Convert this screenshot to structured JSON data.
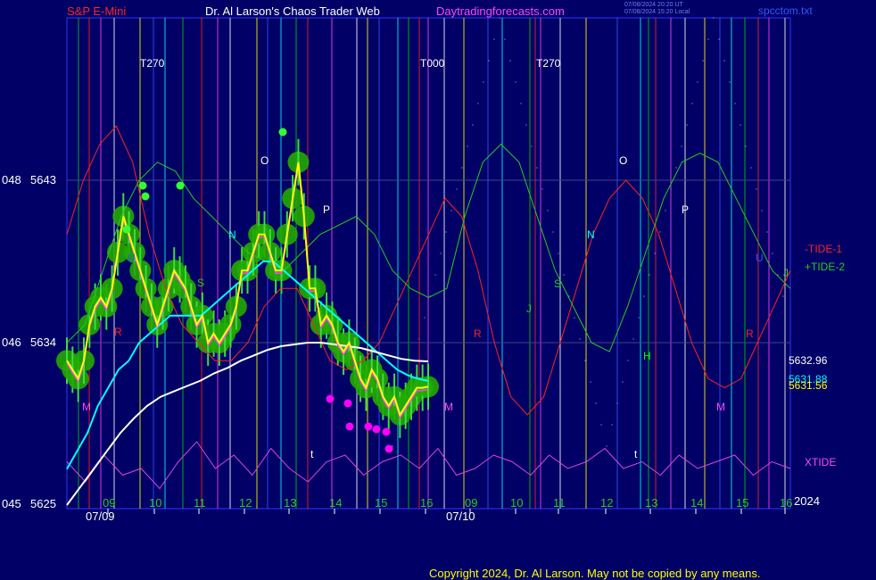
{
  "header": {
    "instrument": "S&P E-Mini",
    "site_title": "Dr. Al Larson's Chaos Trader Web",
    "site_url": "Daytradingforecasts.com",
    "timestamp_ut": "07/08/2024 20:20 UT",
    "timestamp_local": "07/08/2024 15:20 Local",
    "file": "spcctom.txt"
  },
  "copyright": "Copyright 2024, Dr. Al Larson. May not be copied by any means.",
  "colors": {
    "background": "#000066",
    "plot_border": "#3333ff",
    "price": "#ffff00",
    "price_fast": "#ff44ff",
    "moving_avg_fast": "#00ffff",
    "moving_avg_slow": "#ffffff",
    "tide1": "#ff2222",
    "tide2": "#22cc22",
    "xtide": "#dd44dd",
    "bubbles": "#22aa00",
    "dots_green": "#33ff33",
    "dots_magenta": "#ff00ff"
  },
  "chart_data": {
    "type": "line",
    "title": "S&P E-Mini",
    "y_axis": {
      "left_ticks": [
        "045",
        "046",
        "048"
      ],
      "price_ticks": [
        5625,
        5634,
        5643
      ],
      "ylim": [
        5625,
        5643
      ]
    },
    "x_axis": {
      "hour_labels": [
        "09",
        "10",
        "11",
        "12",
        "13",
        "14",
        "15",
        "16",
        "09",
        "10",
        "11",
        "12",
        "13",
        "14",
        "15",
        "16"
      ],
      "date_labels": [
        "07/09",
        "07/10"
      ],
      "year": "2024"
    },
    "price_labels": [
      "5632.96",
      "5631.88",
      "5631.56"
    ],
    "series_labels": [
      "-TIDE-1",
      "+TIDE-2",
      "XTIDE"
    ],
    "time_markers": [
      "T270",
      "T000",
      "T270"
    ],
    "planet_letters": [
      "M",
      "R",
      "S",
      "N",
      "O",
      "P",
      "U",
      "J",
      "H",
      "M",
      "R",
      "S",
      "N",
      "O",
      "P",
      "U",
      "J",
      "M",
      "R",
      "t",
      "t"
    ],
    "series": [
      {
        "name": "price",
        "values": [
          5633,
          5632.5,
          5632,
          5633,
          5635,
          5636,
          5636.5,
          5636,
          5637,
          5639,
          5641,
          5640,
          5639,
          5638,
          5637,
          5636,
          5635,
          5636,
          5637,
          5638,
          5637.5,
          5637,
          5636,
          5635,
          5635.5,
          5634,
          5634.5,
          5634,
          5634.5,
          5635,
          5636,
          5638,
          5638,
          5639,
          5640,
          5640,
          5639,
          5638,
          5638,
          5640,
          5642,
          5644,
          5641,
          5637,
          5637,
          5635,
          5635.5,
          5635,
          5634,
          5633.5,
          5634,
          5633,
          5632,
          5631.5,
          5632.5,
          5632,
          5631,
          5630.5,
          5631,
          5630,
          5630.5,
          5631,
          5631.5,
          5631.5,
          5631.56
        ]
      },
      {
        "name": "ma_fast",
        "values": [
          5627,
          5628,
          5629,
          5630.5,
          5631.5,
          5632.5,
          5633,
          5634,
          5634.5,
          5635,
          5635.5,
          5635.5,
          5635.5,
          5635.5,
          5636,
          5636.5,
          5637,
          5637.5,
          5638,
          5638.5,
          5638.5,
          5638,
          5637.5,
          5637,
          5636.5,
          5636,
          5635.5,
          5635,
          5634.5,
          5634,
          5633.5,
          5633,
          5632.5,
          5632.2,
          5632,
          5631.88
        ]
      },
      {
        "name": "ma_slow",
        "values": [
          5625,
          5626,
          5627,
          5628,
          5629,
          5629.8,
          5630.5,
          5631,
          5631.3,
          5631.6,
          5631.9,
          5632.3,
          5632.6,
          5633,
          5633.3,
          5633.6,
          5633.8,
          5633.9,
          5634,
          5634,
          5633.9,
          5633.8,
          5633.7,
          5633.5,
          5633.3,
          5633.1,
          5633,
          5632.96
        ]
      },
      {
        "name": "-TIDE-1",
        "values": [
          5640,
          5643,
          5645,
          5646,
          5644,
          5640,
          5637,
          5635,
          5634,
          5633,
          5633,
          5634,
          5636,
          5637,
          5637,
          5635,
          5633,
          5632.5,
          5633,
          5634,
          5636,
          5638,
          5640,
          5642,
          5641,
          5638,
          5634,
          5631,
          5630,
          5631,
          5634,
          5637,
          5640,
          5642,
          5643,
          5642,
          5640,
          5637,
          5634,
          5632,
          5631.5,
          5632,
          5634,
          5636,
          5638
        ]
      },
      {
        "name": "+TIDE-2",
        "values": [
          5634,
          5635,
          5638,
          5641,
          5643,
          5644,
          5643.5,
          5642,
          5641,
          5640,
          5639,
          5638.5,
          5638,
          5639,
          5640,
          5640.5,
          5641,
          5640,
          5638,
          5637,
          5636.5,
          5637,
          5641,
          5644,
          5645,
          5644,
          5641,
          5638,
          5636,
          5634,
          5633.5,
          5636,
          5639,
          5642,
          5644,
          5644.5,
          5644,
          5642,
          5640,
          5638,
          5637
        ]
      },
      {
        "name": "XTIDE",
        "values": [
          0.5,
          0.2,
          0.6,
          0.3,
          0.4,
          0.1,
          0.5,
          0.8,
          0.4,
          0.6,
          0.3,
          0.7,
          0.4,
          0.2,
          0.5,
          0.6,
          0.3,
          0.5,
          0.6,
          0.4,
          0.7,
          0.3,
          0.4,
          0.6,
          0.5,
          0.3,
          0.6,
          0.4,
          0.5,
          0.7,
          0.4,
          0.5,
          0.3,
          0.6,
          0.4,
          0.5,
          0.6,
          0.3,
          0.5,
          0.4
        ]
      }
    ]
  }
}
